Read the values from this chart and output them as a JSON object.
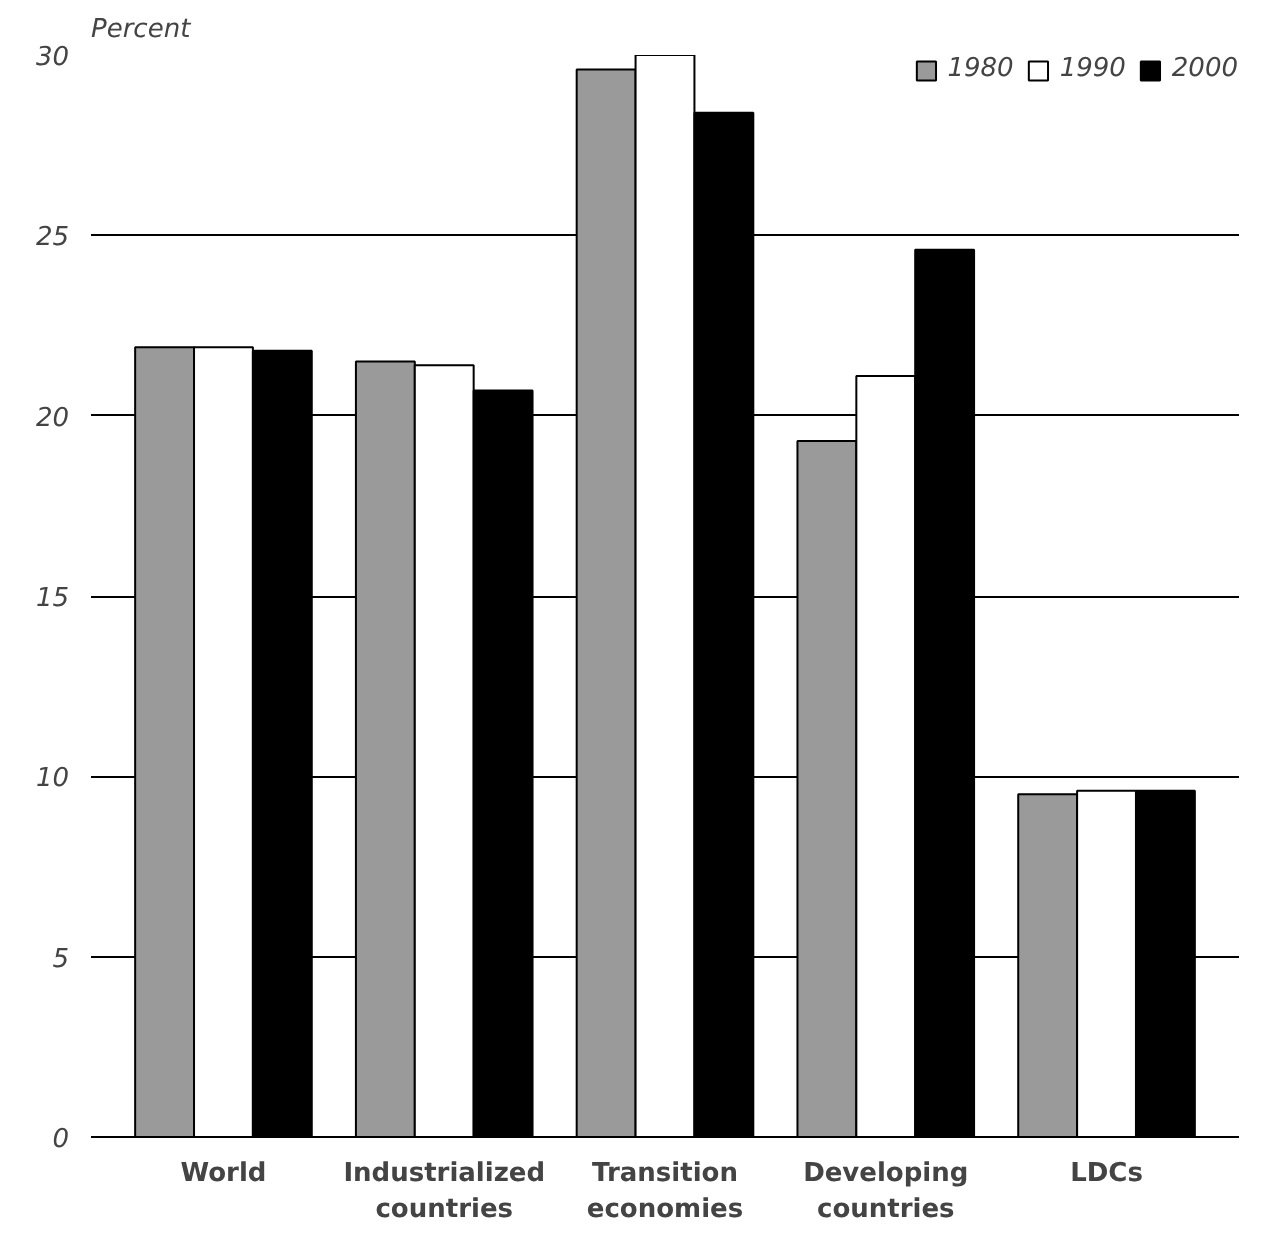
{
  "chart_data": {
    "type": "bar",
    "annotations": [
      "Percent"
    ],
    "categories": [
      "World",
      "Industrialized countries",
      "Transition economies",
      "Developing countries",
      "LDCs"
    ],
    "series": [
      {
        "name": "1980",
        "color": "#9a9a9a",
        "values": [
          21.9,
          21.5,
          29.6,
          19.3,
          9.5
        ]
      },
      {
        "name": "1990",
        "color": "#ffffff",
        "values": [
          21.9,
          21.4,
          30.0,
          21.1,
          9.6
        ]
      },
      {
        "name": "2000",
        "color": "#000000",
        "values": [
          21.8,
          20.7,
          28.4,
          24.6,
          9.6
        ]
      }
    ],
    "ylim": [
      0,
      30
    ],
    "yticks": [
      0,
      5,
      10,
      15,
      20,
      25,
      30
    ],
    "grid": "y",
    "legend": "top right"
  }
}
